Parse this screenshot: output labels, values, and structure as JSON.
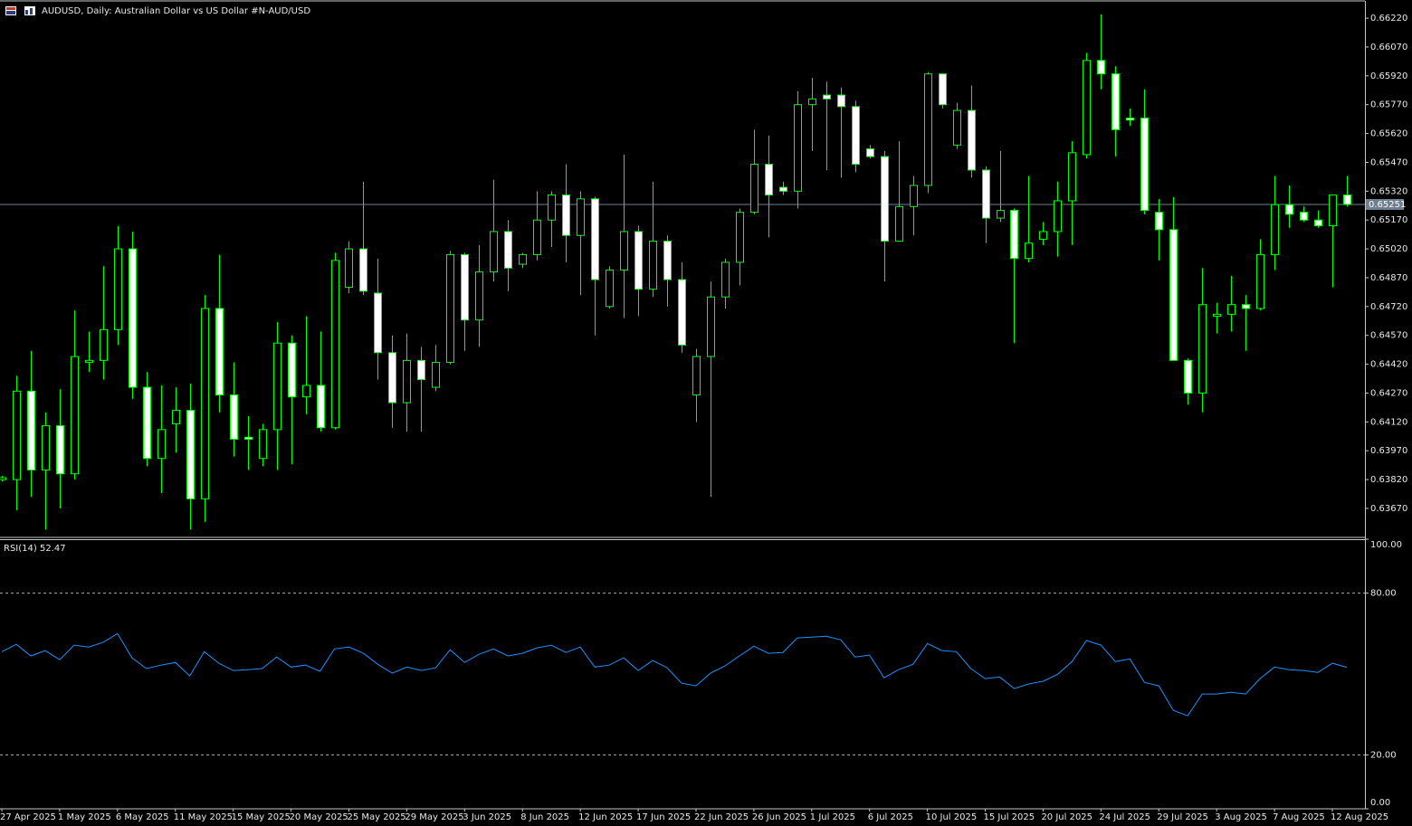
{
  "chart_data": [
    {
      "type": "candlestick",
      "title": "AUDUSD, Daily:  Australian Dollar vs US Dollar #N-AUD/USD",
      "categories": [
        "27 Apr 2025",
        null,
        null,
        null,
        "1 May 2025",
        null,
        null,
        null,
        "6 May 2025",
        null,
        null,
        null,
        "11 May 2025",
        null,
        null,
        null,
        "15 May 2025",
        null,
        null,
        null,
        "20 May 2025",
        null,
        null,
        null,
        "25 May 2025",
        null,
        null,
        null,
        "29 May 2025",
        null,
        null,
        null,
        "3 Jun 2025",
        null,
        null,
        null,
        "8 Jun 2025",
        null,
        null,
        null,
        "12 Jun 2025",
        null,
        null,
        null,
        "17 Jun 2025",
        null,
        null,
        null,
        "22 Jun 2025",
        null,
        null,
        null,
        "26 Jun 2025",
        null,
        null,
        null,
        "1 Jul 2025",
        null,
        null,
        null,
        "6 Jul 2025",
        null,
        null,
        null,
        "10 Jul 2025",
        null,
        null,
        null,
        "15 Jul 2025",
        null,
        null,
        null,
        "20 Jul 2025",
        null,
        null,
        null,
        "24 Jul 2025",
        null,
        null,
        null,
        "29 Jul 2025",
        null,
        null,
        null,
        "3 Aug 2025",
        null,
        null,
        null,
        "7 Aug 2025",
        null,
        null,
        null,
        "12 Aug 2025",
        null
      ],
      "open": [
        0.6382,
        0.6382,
        0.6428,
        0.6387,
        0.641,
        0.6385,
        0.6443,
        0.6444,
        0.646,
        0.6502,
        0.643,
        0.6393,
        0.6411,
        0.6418,
        0.6372,
        0.6471,
        0.6426,
        0.6404,
        0.6393,
        0.6408,
        0.6453,
        0.6425,
        0.6431,
        0.6409,
        0.6482,
        0.6502,
        0.6479,
        0.6448,
        0.6422,
        0.6444,
        0.643,
        0.6443,
        0.6499,
        0.6465,
        0.649,
        0.6511,
        0.6494,
        0.6499,
        0.6517,
        0.653,
        0.6509,
        0.6528,
        0.6472,
        0.6491,
        0.6511,
        0.6481,
        0.6506,
        0.6486,
        0.6426,
        0.6446,
        0.6477,
        0.6495,
        0.6521,
        0.6546,
        0.6534,
        0.6532,
        0.6577,
        0.6582,
        0.6582,
        0.6576,
        0.6554,
        0.655,
        0.6506,
        0.6524,
        0.6535,
        0.6593,
        0.6556,
        0.6574,
        0.6543,
        0.6518,
        0.6522,
        0.6497,
        0.6507,
        0.6511,
        0.6527,
        0.6551,
        0.66,
        0.6593,
        0.657,
        0.657,
        0.6521,
        0.6512,
        0.6444,
        0.6427,
        0.6467,
        0.6468,
        0.6473,
        0.6471,
        0.6499,
        0.6525,
        0.6521,
        0.6517,
        0.6514,
        0.653
      ],
      "high": [
        0.6384,
        0.6436,
        0.6449,
        0.6417,
        0.6429,
        0.647,
        0.6459,
        0.6493,
        0.6514,
        0.6511,
        0.6438,
        0.6431,
        0.643,
        0.6432,
        0.6478,
        0.6499,
        0.6443,
        0.6415,
        0.6411,
        0.6464,
        0.6457,
        0.6467,
        0.6459,
        0.65,
        0.6506,
        0.6537,
        0.6497,
        0.6457,
        0.6458,
        0.6451,
        0.6452,
        0.6501,
        0.65,
        0.6504,
        0.6538,
        0.6517,
        0.65,
        0.6532,
        0.6532,
        0.6546,
        0.6532,
        0.6529,
        0.6493,
        0.6551,
        0.6514,
        0.6537,
        0.6509,
        0.6495,
        0.645,
        0.6485,
        0.6497,
        0.6523,
        0.6564,
        0.6561,
        0.6537,
        0.6584,
        0.6591,
        0.6589,
        0.6586,
        0.6579,
        0.6556,
        0.6553,
        0.6558,
        0.654,
        0.6594,
        0.6593,
        0.6578,
        0.6587,
        0.6545,
        0.6553,
        0.6523,
        0.654,
        0.6516,
        0.6537,
        0.6558,
        0.6604,
        0.6624,
        0.6597,
        0.6575,
        0.6585,
        0.6528,
        0.6529,
        0.6445,
        0.6492,
        0.6474,
        0.6488,
        0.6478,
        0.6507,
        0.654,
        0.6535,
        0.6524,
        0.6522,
        0.653,
        0.654
      ],
      "low": [
        0.6381,
        0.6366,
        0.6373,
        0.6356,
        0.6367,
        0.6382,
        0.6438,
        0.6434,
        0.6452,
        0.6424,
        0.6389,
        0.6375,
        0.6396,
        0.6356,
        0.636,
        0.6417,
        0.6394,
        0.6387,
        0.6389,
        0.6387,
        0.639,
        0.6416,
        0.6407,
        0.6408,
        0.6479,
        0.6478,
        0.6434,
        0.6409,
        0.6407,
        0.6407,
        0.6428,
        0.6442,
        0.6449,
        0.6451,
        0.6485,
        0.648,
        0.6492,
        0.6496,
        0.6503,
        0.6495,
        0.6478,
        0.6457,
        0.6471,
        0.6466,
        0.6467,
        0.6477,
        0.6472,
        0.6448,
        0.6412,
        0.6373,
        0.6471,
        0.6483,
        0.652,
        0.6508,
        0.653,
        0.6523,
        0.6553,
        0.6543,
        0.6539,
        0.6542,
        0.6549,
        0.6485,
        0.6506,
        0.6509,
        0.6531,
        0.6575,
        0.6554,
        0.6539,
        0.6505,
        0.6516,
        0.6453,
        0.6495,
        0.6504,
        0.6498,
        0.6504,
        0.6549,
        0.6585,
        0.655,
        0.6566,
        0.652,
        0.6496,
        0.6444,
        0.6421,
        0.6417,
        0.6458,
        0.6459,
        0.6449,
        0.647,
        0.6491,
        0.6513,
        0.6516,
        0.6513,
        0.6482,
        0.6524
      ],
      "close": [
        0.6383,
        0.6428,
        0.6387,
        0.641,
        0.6385,
        0.6446,
        0.6444,
        0.646,
        0.6502,
        0.643,
        0.6393,
        0.6408,
        0.6418,
        0.6372,
        0.6471,
        0.6426,
        0.6403,
        0.6403,
        0.6408,
        0.6453,
        0.6425,
        0.6431,
        0.6409,
        0.6496,
        0.6502,
        0.648,
        0.6448,
        0.6422,
        0.6444,
        0.6434,
        0.6443,
        0.6499,
        0.6465,
        0.649,
        0.6511,
        0.6492,
        0.6499,
        0.6517,
        0.653,
        0.6509,
        0.6528,
        0.6486,
        0.6491,
        0.6511,
        0.6481,
        0.6506,
        0.6486,
        0.6452,
        0.6446,
        0.6477,
        0.6495,
        0.6521,
        0.6546,
        0.653,
        0.6532,
        0.6577,
        0.658,
        0.658,
        0.6576,
        0.6546,
        0.655,
        0.6506,
        0.6524,
        0.6535,
        0.6593,
        0.6577,
        0.6574,
        0.6543,
        0.6518,
        0.6522,
        0.6497,
        0.6505,
        0.6511,
        0.6527,
        0.6552,
        0.66,
        0.6593,
        0.6564,
        0.6569,
        0.6522,
        0.6512,
        0.6444,
        0.6427,
        0.6473,
        0.6468,
        0.6473,
        0.6471,
        0.6499,
        0.6525,
        0.652,
        0.6517,
        0.6514,
        0.653,
        0.65251
      ],
      "bull_color": "#000000",
      "bear_color": "#ffffff",
      "wick_color": "#00ff00",
      "current_price": 0.65251,
      "price_line_color": "#6f7f8f",
      "ylim": [
        0.63524,
        0.66305
      ],
      "yticks": [
        {
          "value": 0.6622,
          "label": "0.66220"
        },
        {
          "value": 0.6607,
          "label": "0.66070"
        },
        {
          "value": 0.6592,
          "label": "0.65920"
        },
        {
          "value": 0.6577,
          "label": "0.65770"
        },
        {
          "value": 0.6562,
          "label": "0.65620"
        },
        {
          "value": 0.6547,
          "label": "0.65470"
        },
        {
          "value": 0.6532,
          "label": "0.65320"
        },
        {
          "value": 0.6517,
          "label": "0.65170"
        },
        {
          "value": 0.6502,
          "label": "0.65020"
        },
        {
          "value": 0.6487,
          "label": "0.64870"
        },
        {
          "value": 0.6472,
          "label": "0.64720"
        },
        {
          "value": 0.6457,
          "label": "0.64570"
        },
        {
          "value": 0.6442,
          "label": "0.64420"
        },
        {
          "value": 0.6427,
          "label": "0.64270"
        },
        {
          "value": 0.6412,
          "label": "0.64120"
        },
        {
          "value": 0.6397,
          "label": "0.63970"
        },
        {
          "value": 0.6382,
          "label": "0.63820"
        },
        {
          "value": 0.6367,
          "label": "0.63670"
        }
      ],
      "grid": false
    },
    {
      "type": "line",
      "title": "RSI(14) 52.47",
      "color": "#1e90ff",
      "values": [
        58.3,
        61.0,
        56.7,
        58.7,
        55.3,
        60.7,
        60.0,
        61.7,
        65.0,
        56.0,
        52.0,
        53.3,
        54.3,
        49.3,
        58.3,
        54.0,
        51.3,
        51.6,
        52.0,
        56.3,
        52.6,
        53.3,
        51.0,
        59.3,
        60.0,
        57.7,
        53.6,
        50.3,
        52.6,
        51.3,
        52.3,
        59.0,
        54.3,
        57.3,
        59.3,
        56.7,
        57.7,
        59.7,
        60.7,
        58.0,
        60.0,
        52.6,
        53.3,
        56.0,
        51.3,
        55.0,
        52.3,
        46.6,
        45.6,
        50.3,
        53.0,
        56.7,
        60.3,
        57.7,
        58.0,
        63.4,
        63.7,
        64.0,
        62.7,
        56.3,
        57.0,
        48.6,
        51.6,
        53.6,
        61.3,
        58.7,
        58.3,
        52.0,
        48.3,
        48.9,
        44.6,
        46.3,
        47.3,
        49.9,
        54.6,
        62.4,
        60.7,
        54.6,
        55.6,
        46.9,
        45.6,
        36.5,
        34.5,
        42.6,
        42.6,
        43.2,
        42.6,
        48.3,
        52.6,
        51.6,
        51.3,
        50.6,
        54.0,
        52.47
      ],
      "ylim": [
        0,
        100
      ],
      "yticks": [
        {
          "value": 100,
          "label": "100.00"
        },
        {
          "value": 80,
          "label": "80.00"
        },
        {
          "value": 20,
          "label": "20.00"
        },
        {
          "value": 0,
          "label": "0.00"
        }
      ]
    }
  ]
}
